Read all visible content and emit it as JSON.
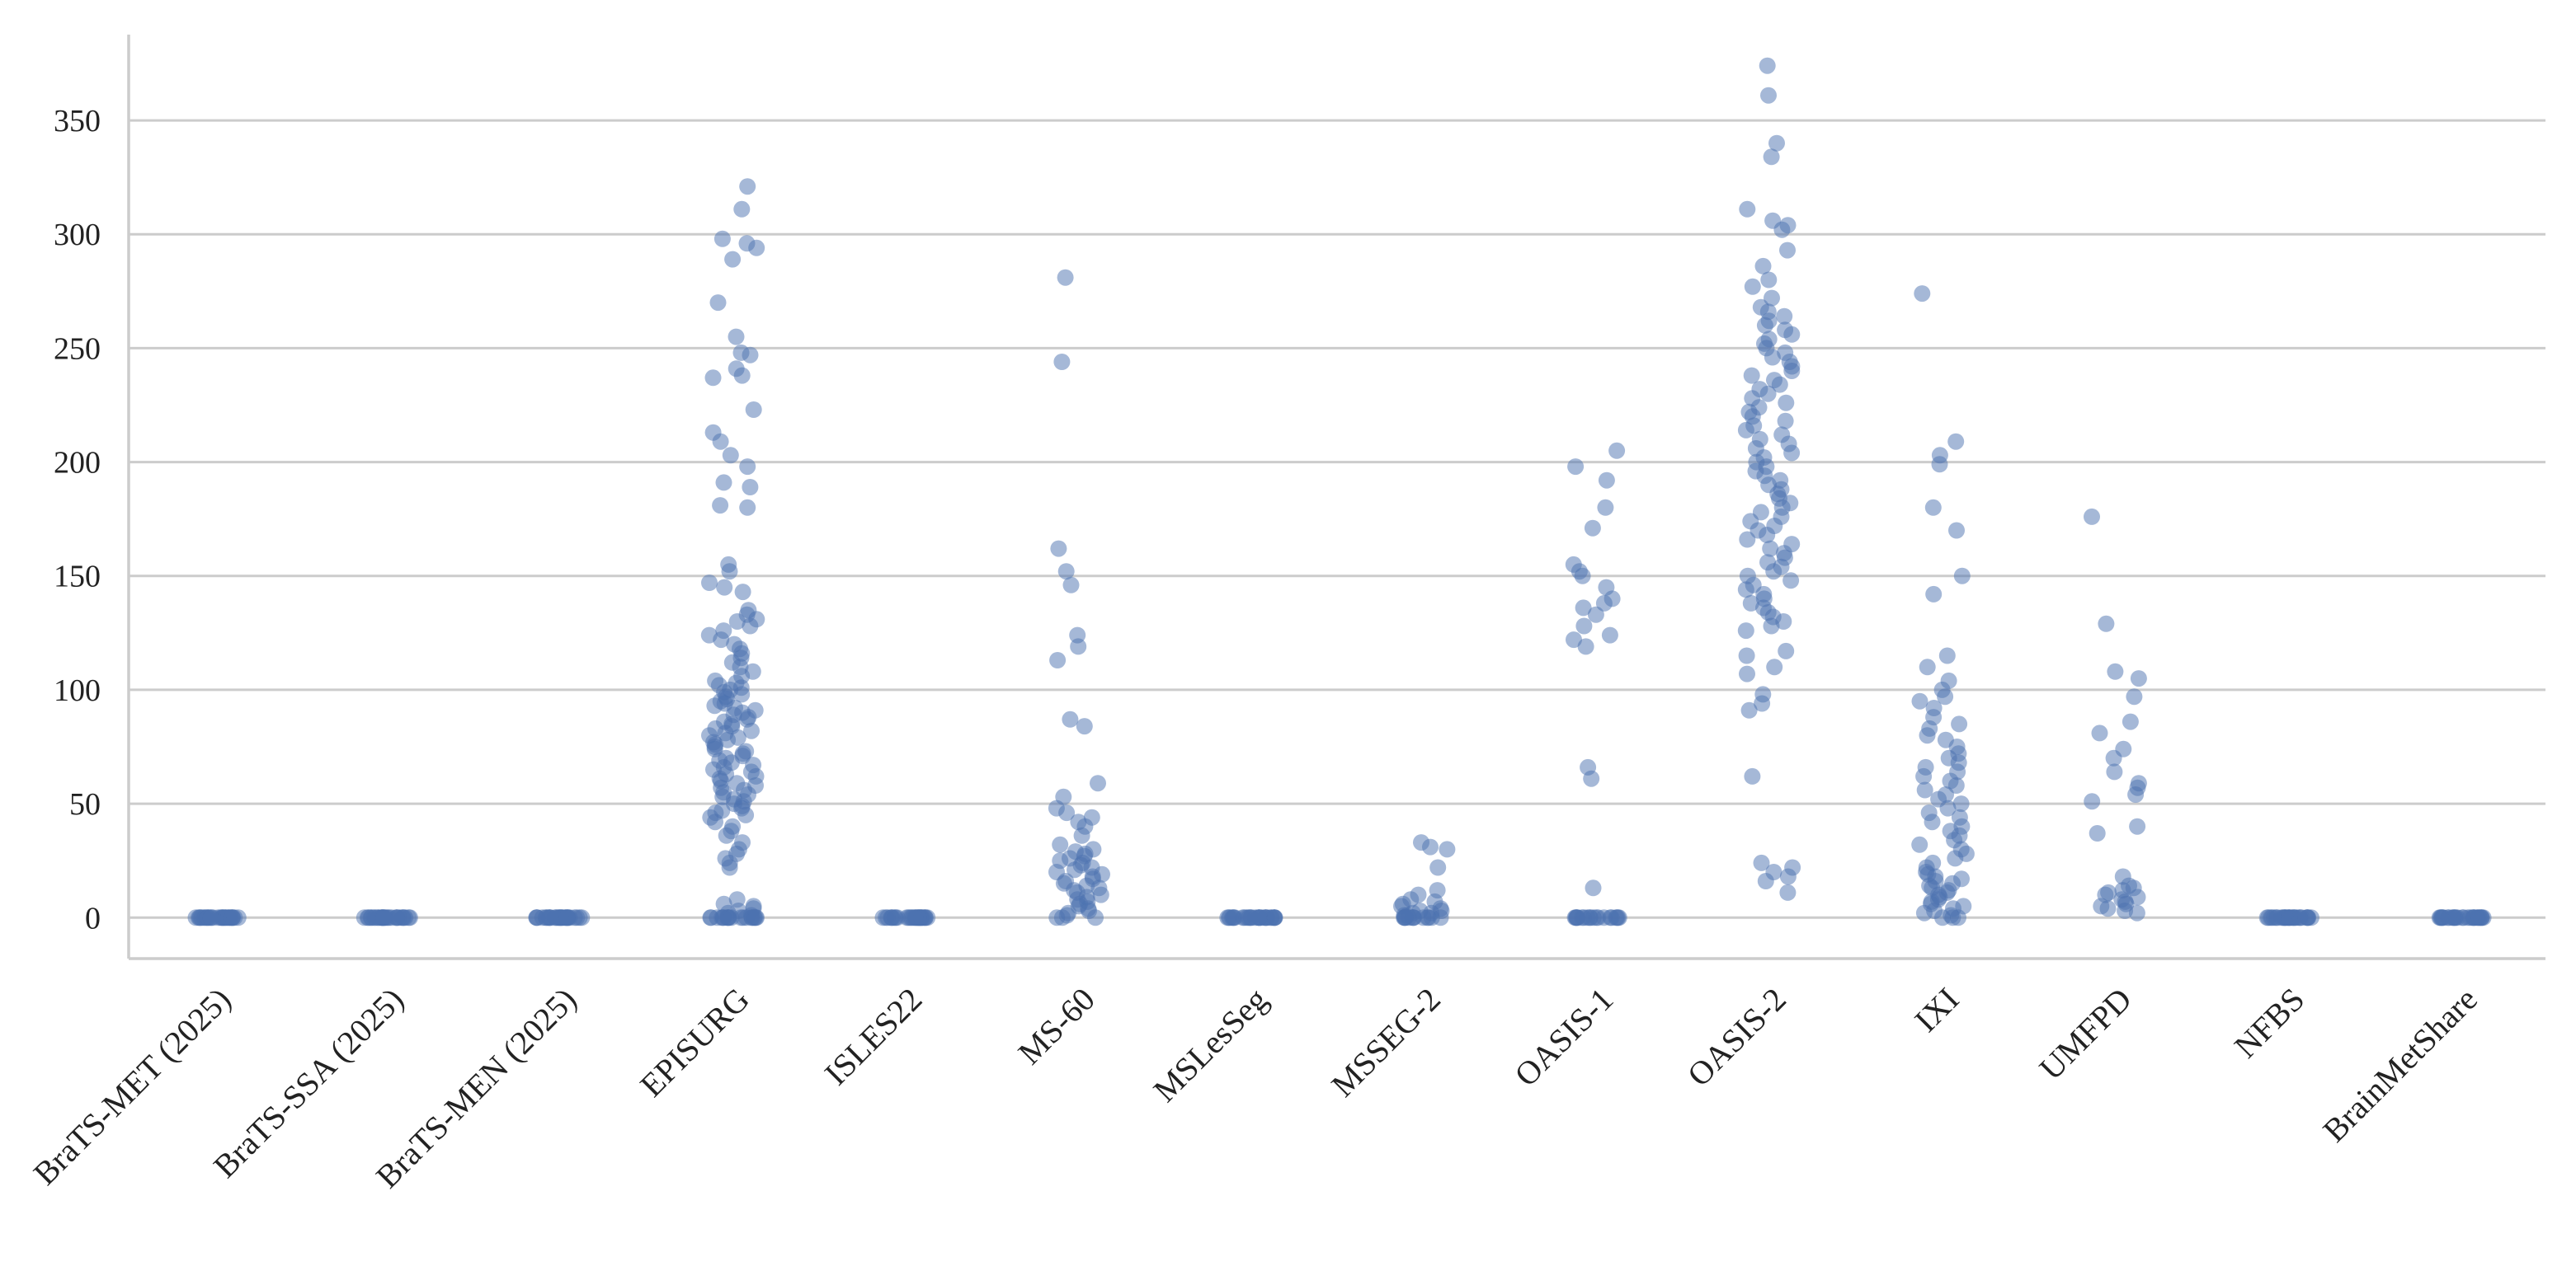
{
  "chart_data": {
    "type": "scatter",
    "style": "strip",
    "title": "",
    "xlabel": "",
    "ylabel": "",
    "ylim": [
      -18,
      392
    ],
    "yticks": [
      0,
      50,
      100,
      150,
      200,
      250,
      300,
      350
    ],
    "grid": "horizontal",
    "legend": "none",
    "point_color": "#4c72b0",
    "categories": [
      "BraTS-MET (2025)",
      "BraTS-SSA (2025)",
      "BraTS-MEN (2025)",
      "EPISURG",
      "ISLES22",
      "MS-60",
      "MSLesSeg",
      "MSSEG-2",
      "OASIS-1",
      "OASIS-2",
      "IXI",
      "UMFPD",
      "NFBS",
      "BrainMetShare"
    ],
    "series": [
      {
        "category": "BraTS-MET (2025)",
        "values": [
          0,
          0,
          0,
          0,
          0,
          0,
          0,
          0,
          0,
          0,
          0,
          0,
          0,
          0,
          0,
          0,
          0,
          0,
          0,
          0,
          0,
          0,
          0,
          0,
          0,
          0,
          0,
          0,
          0,
          0
        ]
      },
      {
        "category": "BraTS-SSA (2025)",
        "values": [
          0,
          0,
          0,
          0,
          0,
          0,
          0,
          0,
          0,
          0,
          0,
          0,
          0,
          0,
          0,
          0,
          0,
          0,
          0,
          0,
          0,
          0,
          0,
          0,
          0,
          0,
          0,
          0,
          0,
          0
        ]
      },
      {
        "category": "BraTS-MEN (2025)",
        "values": [
          0,
          0,
          0,
          0,
          0,
          0,
          0,
          0,
          0,
          0,
          0,
          0,
          0,
          0,
          0,
          0,
          0,
          0,
          0,
          0,
          0,
          0,
          0,
          0,
          0,
          0,
          0,
          0,
          0,
          0
        ]
      },
      {
        "category": "EPISURG",
        "values": [
          321,
          311,
          298,
          296,
          294,
          289,
          270,
          255,
          248,
          247,
          241,
          238,
          237,
          223,
          213,
          209,
          203,
          198,
          191,
          189,
          181,
          180,
          155,
          152,
          147,
          145,
          143,
          135,
          133,
          131,
          130,
          128,
          126,
          124,
          122,
          120,
          118,
          116,
          114,
          112,
          110,
          108,
          106,
          104,
          103,
          102,
          101,
          100,
          99,
          98,
          97,
          96,
          95,
          94,
          93,
          92,
          91,
          90,
          89,
          88,
          87,
          86,
          85,
          84,
          83,
          82,
          81,
          80,
          79,
          78,
          77,
          76,
          75,
          74,
          73,
          72,
          71,
          70,
          69,
          68,
          67,
          66,
          65,
          64,
          63,
          62,
          61,
          60,
          59,
          58,
          57,
          56,
          55,
          54,
          53,
          52,
          51,
          50,
          49,
          48,
          47,
          46,
          45,
          44,
          42,
          40,
          38,
          36,
          33,
          30,
          28,
          26,
          24,
          22,
          8,
          6,
          5,
          4,
          3,
          2,
          1,
          0,
          0,
          0,
          0,
          0,
          0,
          0,
          0,
          0,
          0,
          0,
          0,
          0,
          0,
          0,
          0,
          0,
          0,
          0,
          0
        ]
      },
      {
        "category": "ISLES22",
        "values": [
          0,
          0,
          0,
          0,
          0,
          0,
          0,
          0,
          0,
          0,
          0,
          0,
          0,
          0,
          0,
          0,
          0,
          0,
          0,
          0,
          0,
          0,
          0,
          0,
          0,
          0,
          0,
          0,
          0,
          0
        ]
      },
      {
        "category": "MS-60",
        "values": [
          281,
          244,
          162,
          152,
          146,
          124,
          119,
          113,
          87,
          84,
          59,
          53,
          48,
          46,
          44,
          42,
          40,
          36,
          32,
          30,
          29,
          28,
          27,
          26,
          25,
          24,
          23,
          22,
          21,
          20,
          19,
          18,
          17,
          16,
          15,
          14,
          13,
          12,
          11,
          10,
          9,
          8,
          7,
          6,
          5,
          4,
          3,
          2,
          1,
          0,
          0,
          0
        ]
      },
      {
        "category": "MSLesSeg",
        "values": [
          0,
          0,
          0,
          0,
          0,
          0,
          0,
          0,
          0,
          0,
          0,
          0,
          0,
          0,
          0,
          0,
          0,
          0,
          0,
          0,
          0,
          0,
          0,
          0,
          0,
          0,
          0,
          0,
          0,
          0
        ]
      },
      {
        "category": "MSSEG-2",
        "values": [
          33,
          31,
          30,
          22,
          12,
          10,
          8,
          7,
          6,
          5,
          4,
          3,
          3,
          2,
          2,
          1,
          1,
          0,
          0,
          0,
          0,
          0,
          0,
          0,
          0,
          0,
          0,
          0,
          0,
          0
        ]
      },
      {
        "category": "OASIS-1",
        "values": [
          205,
          198,
          192,
          180,
          171,
          155,
          152,
          150,
          145,
          140,
          138,
          136,
          133,
          128,
          124,
          122,
          119,
          66,
          61,
          13,
          0,
          0,
          0,
          0,
          0,
          0,
          0,
          0,
          0,
          0,
          0,
          0,
          0,
          0,
          0,
          0,
          0,
          0,
          0,
          0
        ]
      },
      {
        "category": "OASIS-2",
        "values": [
          374,
          361,
          340,
          334,
          311,
          306,
          304,
          302,
          293,
          286,
          280,
          277,
          272,
          268,
          266,
          264,
          262,
          260,
          258,
          256,
          254,
          252,
          250,
          248,
          246,
          244,
          242,
          240,
          238,
          236,
          234,
          232,
          230,
          228,
          226,
          224,
          222,
          220,
          218,
          216,
          214,
          212,
          210,
          208,
          206,
          204,
          202,
          200,
          198,
          196,
          194,
          192,
          190,
          188,
          186,
          184,
          182,
          180,
          178,
          176,
          174,
          172,
          170,
          168,
          166,
          164,
          162,
          160,
          158,
          156,
          154,
          152,
          150,
          148,
          146,
          144,
          142,
          140,
          138,
          136,
          134,
          132,
          130,
          128,
          126,
          117,
          115,
          110,
          107,
          98,
          94,
          91,
          62,
          24,
          22,
          20,
          18,
          16,
          11
        ]
      },
      {
        "category": "IXI",
        "values": [
          274,
          209,
          203,
          199,
          180,
          170,
          150,
          142,
          115,
          110,
          104,
          100,
          97,
          95,
          92,
          88,
          85,
          83,
          80,
          78,
          75,
          72,
          70,
          68,
          66,
          64,
          62,
          60,
          58,
          56,
          54,
          52,
          50,
          48,
          46,
          44,
          42,
          40,
          38,
          36,
          34,
          32,
          30,
          28,
          26,
          24,
          22,
          20,
          19,
          18,
          17,
          16,
          15,
          14,
          13,
          12,
          11,
          10,
          9,
          8,
          7,
          6,
          5,
          4,
          3,
          2,
          1,
          0,
          0,
          0
        ]
      },
      {
        "category": "UMFPD",
        "values": [
          176,
          129,
          108,
          105,
          97,
          86,
          81,
          74,
          70,
          64,
          59,
          57,
          54,
          51,
          40,
          37,
          18,
          14,
          13,
          12,
          11,
          10,
          9,
          8,
          7,
          6,
          5,
          4,
          3,
          2
        ]
      },
      {
        "category": "NFBS",
        "values": [
          0,
          0,
          0,
          0,
          0,
          0,
          0,
          0,
          0,
          0,
          0,
          0,
          0,
          0,
          0,
          0,
          0,
          0,
          0,
          0,
          0,
          0,
          0,
          0,
          0,
          0,
          0,
          0,
          0,
          0
        ]
      },
      {
        "category": "BrainMetShare",
        "values": [
          0,
          0,
          0,
          0,
          0,
          0,
          0,
          0,
          0,
          0,
          0,
          0,
          0,
          0,
          0,
          0,
          0,
          0,
          0,
          0,
          0,
          0,
          0,
          0,
          0,
          0,
          0,
          0,
          0,
          0
        ]
      }
    ]
  }
}
